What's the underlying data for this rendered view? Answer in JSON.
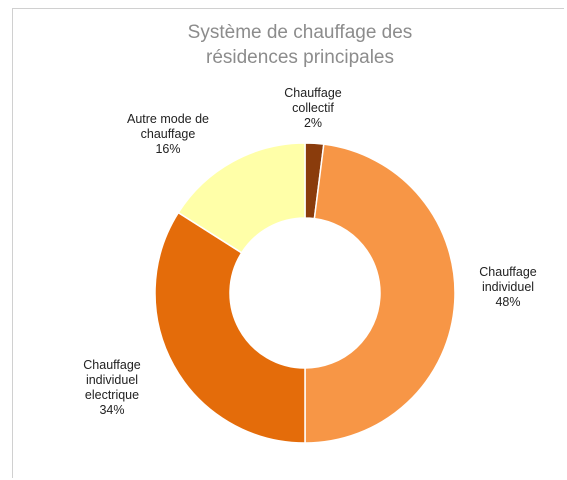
{
  "chart_data": {
    "type": "donut",
    "title": "Système de chauffage des résidences principales",
    "categories": [
      "Chauffage collectif",
      "Chauffage individuel",
      "Chauffage individuel electrique",
      "Autre mode de chauffage"
    ],
    "values": [
      2,
      48,
      34,
      16
    ],
    "value_labels": [
      "2%",
      "48%",
      "34%",
      "16%"
    ],
    "colors": [
      "#8a3c0c",
      "#f79646",
      "#e46c0a",
      "#ffffa8"
    ]
  }
}
